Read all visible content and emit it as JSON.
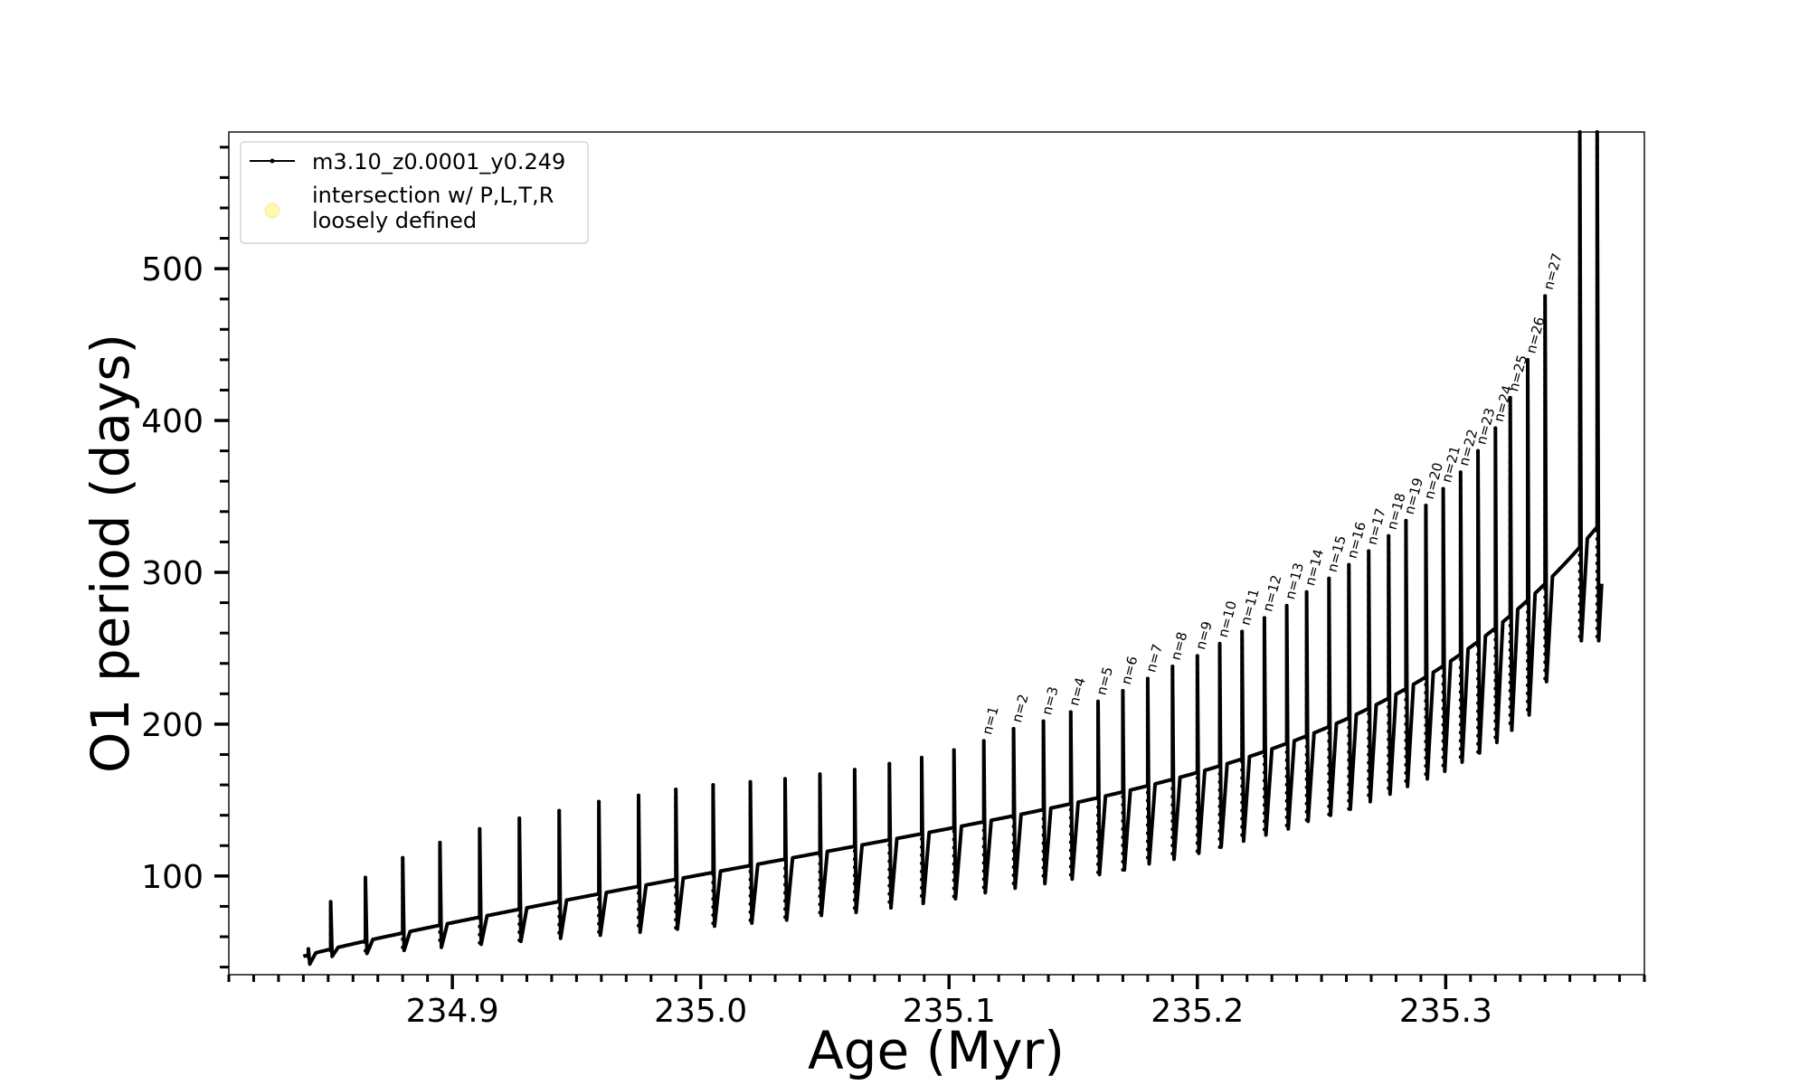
{
  "chart_data": {
    "type": "line",
    "title": "",
    "xlabel": "Age (Myr)",
    "ylabel": "O1 period (days)",
    "xlim": [
      234.81,
      235.38
    ],
    "ylim": [
      35,
      590
    ],
    "xticks": [
      234.9,
      235.0,
      235.1,
      235.2,
      235.3
    ],
    "xtick_labels": [
      "234.9",
      "235.0",
      "235.1",
      "235.2",
      "235.3"
    ],
    "yticks": [
      100,
      200,
      300,
      400,
      500
    ],
    "ytick_labels": [
      "100",
      "200",
      "300",
      "400",
      "500"
    ],
    "x_minor_step": 0.01,
    "y_minor_step": 20,
    "grid": false,
    "legend_position": "upper-left",
    "legend": [
      {
        "label": "m3.10_z0.0001_y0.249",
        "marker": "line-with-dots",
        "color": "#000000"
      },
      {
        "label": "intersection w/ P,L,T,R\nloosely defined",
        "marker": "circle",
        "color": "#fff9b0"
      }
    ],
    "series": [
      {
        "name": "m3.10_z0.0001_y0.249",
        "color": "#000000",
        "baseline_start": [
          234.84,
          47
        ],
        "baseline_end": [
          235.361,
          330
        ],
        "thermal_pulses": [
          {
            "x": 234.842,
            "peak": 52,
            "dip": 42,
            "label": ""
          },
          {
            "x": 234.851,
            "peak": 83,
            "dip": 47,
            "label": ""
          },
          {
            "x": 234.865,
            "peak": 99,
            "dip": 49,
            "label": ""
          },
          {
            "x": 234.88,
            "peak": 112,
            "dip": 51,
            "label": ""
          },
          {
            "x": 234.895,
            "peak": 122,
            "dip": 53,
            "label": ""
          },
          {
            "x": 234.911,
            "peak": 131,
            "dip": 55,
            "label": ""
          },
          {
            "x": 234.927,
            "peak": 138,
            "dip": 57,
            "label": ""
          },
          {
            "x": 234.943,
            "peak": 143,
            "dip": 59,
            "label": ""
          },
          {
            "x": 234.959,
            "peak": 149,
            "dip": 61,
            "label": ""
          },
          {
            "x": 234.975,
            "peak": 153,
            "dip": 63,
            "label": ""
          },
          {
            "x": 234.99,
            "peak": 157,
            "dip": 65,
            "label": ""
          },
          {
            "x": 235.005,
            "peak": 160,
            "dip": 67,
            "label": ""
          },
          {
            "x": 235.02,
            "peak": 162,
            "dip": 69,
            "label": ""
          },
          {
            "x": 235.034,
            "peak": 164,
            "dip": 71,
            "label": ""
          },
          {
            "x": 235.048,
            "peak": 167,
            "dip": 74,
            "label": ""
          },
          {
            "x": 235.062,
            "peak": 170,
            "dip": 76,
            "label": ""
          },
          {
            "x": 235.076,
            "peak": 174,
            "dip": 79,
            "label": ""
          },
          {
            "x": 235.089,
            "peak": 178,
            "dip": 82,
            "label": ""
          },
          {
            "x": 235.102,
            "peak": 183,
            "dip": 85,
            "label": ""
          },
          {
            "x": 235.114,
            "peak": 189,
            "dip": 89,
            "label": "n=1"
          },
          {
            "x": 235.126,
            "peak": 197,
            "dip": 92,
            "label": "n=2"
          },
          {
            "x": 235.138,
            "peak": 202,
            "dip": 95,
            "label": "n=3"
          },
          {
            "x": 235.149,
            "peak": 208,
            "dip": 98,
            "label": "n=4"
          },
          {
            "x": 235.16,
            "peak": 215,
            "dip": 101,
            "label": "n=5"
          },
          {
            "x": 235.17,
            "peak": 222,
            "dip": 104,
            "label": "n=6"
          },
          {
            "x": 235.18,
            "peak": 230,
            "dip": 108,
            "label": "n=7"
          },
          {
            "x": 235.19,
            "peak": 238,
            "dip": 111,
            "label": "n=8"
          },
          {
            "x": 235.2,
            "peak": 245,
            "dip": 115,
            "label": "n=9"
          },
          {
            "x": 235.209,
            "peak": 253,
            "dip": 119,
            "label": "n=10"
          },
          {
            "x": 235.218,
            "peak": 261,
            "dip": 123,
            "label": "n=11"
          },
          {
            "x": 235.227,
            "peak": 270,
            "dip": 127,
            "label": "n=12"
          },
          {
            "x": 235.236,
            "peak": 278,
            "dip": 131,
            "label": "n=13"
          },
          {
            "x": 235.244,
            "peak": 287,
            "dip": 136,
            "label": "n=14"
          },
          {
            "x": 235.253,
            "peak": 296,
            "dip": 140,
            "label": "n=15"
          },
          {
            "x": 235.261,
            "peak": 305,
            "dip": 144,
            "label": "n=16"
          },
          {
            "x": 235.269,
            "peak": 314,
            "dip": 149,
            "label": "n=17"
          },
          {
            "x": 235.277,
            "peak": 324,
            "dip": 154,
            "label": "n=18"
          },
          {
            "x": 235.284,
            "peak": 334,
            "dip": 159,
            "label": "n=19"
          },
          {
            "x": 235.292,
            "peak": 344,
            "dip": 164,
            "label": "n=20"
          },
          {
            "x": 235.299,
            "peak": 355,
            "dip": 169,
            "label": "n=21"
          },
          {
            "x": 235.306,
            "peak": 366,
            "dip": 175,
            "label": "n=22"
          },
          {
            "x": 235.313,
            "peak": 380,
            "dip": 181,
            "label": "n=23"
          },
          {
            "x": 235.32,
            "peak": 395,
            "dip": 188,
            "label": "n=24"
          },
          {
            "x": 235.326,
            "peak": 415,
            "dip": 196,
            "label": "n=25"
          },
          {
            "x": 235.333,
            "peak": 440,
            "dip": 206,
            "label": "n=26"
          },
          {
            "x": 235.34,
            "peak": 482,
            "dip": 228,
            "label": "n=27"
          },
          {
            "x": 235.354,
            "peak": 590,
            "dip": 255,
            "label": ""
          },
          {
            "x": 235.361,
            "peak": 590,
            "dip": 255,
            "label": ""
          }
        ]
      }
    ]
  }
}
